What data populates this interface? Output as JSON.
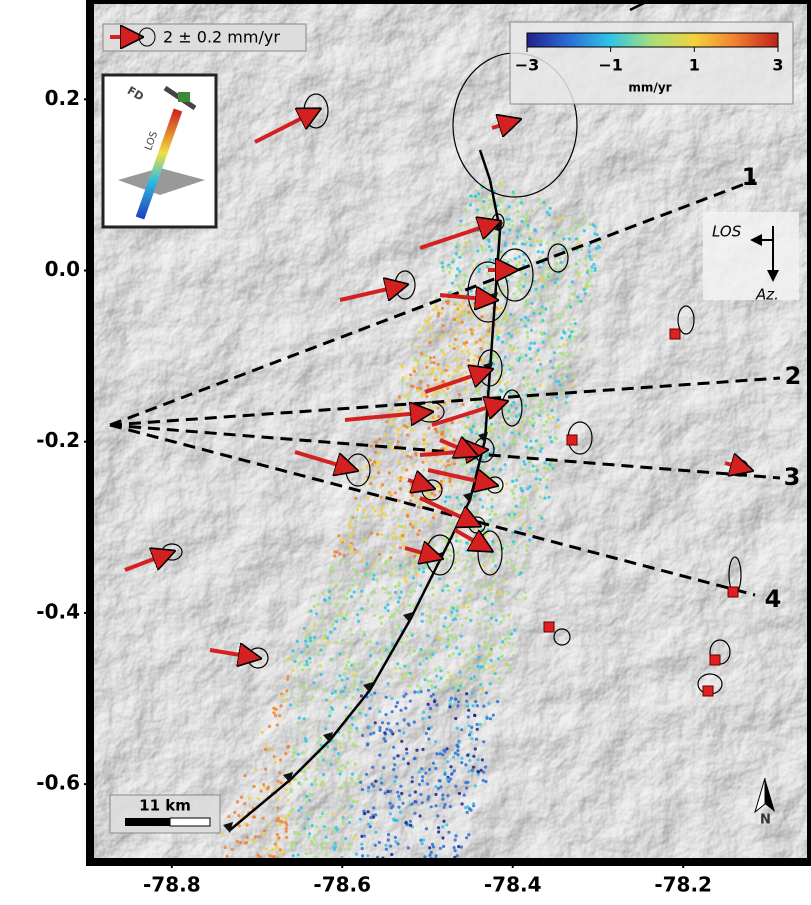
{
  "chart_data": {
    "type": "map",
    "xlim": [
      -78.896,
      -78.05
    ],
    "ylim": [
      -0.691,
      0.316
    ],
    "xticks": [
      -78.8,
      -78.6,
      -78.4,
      -78.2
    ],
    "yticks": [
      0.2,
      {
        "value": 0,
        "label": "0.0"
      },
      -0.2,
      -0.4,
      -0.6
    ],
    "legend": "2 ± 0.2 mm/yr",
    "colorbar": {
      "label": "mm/yr",
      "lim": [
        -3,
        3
      ],
      "ticks": [
        {
          "value": -3,
          "label": "−3"
        },
        {
          "value": -1,
          "label": "−1"
        },
        1,
        3
      ]
    },
    "profiles": [
      "1",
      "2",
      "3",
      "4"
    ],
    "los_box": {
      "los": "LOS",
      "azimuth": "Az."
    },
    "inset": {
      "fault": "FD",
      "los": "LOS"
    },
    "scale_bar": "11 km",
    "north": "N"
  }
}
